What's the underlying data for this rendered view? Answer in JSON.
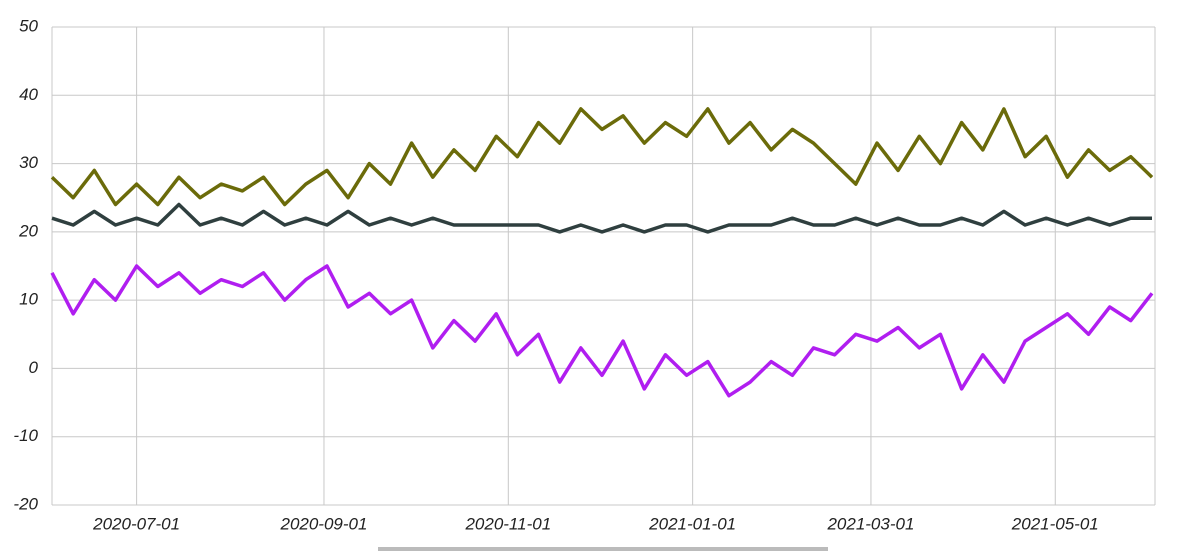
{
  "chart_data": {
    "type": "line",
    "x": [
      "2020-06-03",
      "2020-06-10",
      "2020-06-17",
      "2020-06-24",
      "2020-07-01",
      "2020-07-08",
      "2020-07-15",
      "2020-07-22",
      "2020-07-29",
      "2020-08-05",
      "2020-08-12",
      "2020-08-19",
      "2020-08-26",
      "2020-09-02",
      "2020-09-09",
      "2020-09-16",
      "2020-09-23",
      "2020-09-30",
      "2020-10-07",
      "2020-10-14",
      "2020-10-21",
      "2020-10-28",
      "2020-11-04",
      "2020-11-11",
      "2020-11-18",
      "2020-11-25",
      "2020-12-02",
      "2020-12-09",
      "2020-12-16",
      "2020-12-23",
      "2020-12-30",
      "2021-01-06",
      "2021-01-13",
      "2021-01-20",
      "2021-01-27",
      "2021-02-03",
      "2021-02-10",
      "2021-02-17",
      "2021-02-24",
      "2021-03-03",
      "2021-03-10",
      "2021-03-17",
      "2021-03-24",
      "2021-03-31",
      "2021-04-07",
      "2021-04-14",
      "2021-04-21",
      "2021-04-28",
      "2021-05-05",
      "2021-05-12",
      "2021-05-19",
      "2021-05-26",
      "2021-06-02"
    ],
    "series": [
      {
        "color": "#6b6b0a",
        "values": [
          28,
          25,
          29,
          24,
          27,
          24,
          28,
          25,
          27,
          26,
          28,
          24,
          27,
          29,
          25,
          30,
          27,
          33,
          28,
          32,
          29,
          34,
          31,
          36,
          33,
          38,
          35,
          37,
          33,
          36,
          34,
          38,
          33,
          36,
          32,
          35,
          33,
          30,
          27,
          33,
          29,
          34,
          30,
          36,
          32,
          38,
          31,
          34,
          28,
          32,
          29,
          31,
          28
        ]
      },
      {
        "color": "#2f3f3f",
        "values": [
          22,
          21,
          23,
          21,
          22,
          21,
          24,
          21,
          22,
          21,
          23,
          21,
          22,
          21,
          23,
          21,
          22,
          21,
          22,
          21,
          21,
          21,
          21,
          21,
          20,
          21,
          20,
          21,
          20,
          21,
          21,
          20,
          21,
          21,
          21,
          22,
          21,
          21,
          22,
          21,
          22,
          21,
          21,
          22,
          21,
          23,
          21,
          22,
          21,
          22,
          21,
          22,
          22
        ]
      },
      {
        "color": "#b01ef0",
        "values": [
          14,
          8,
          13,
          10,
          15,
          12,
          14,
          11,
          13,
          12,
          14,
          10,
          13,
          15,
          9,
          11,
          8,
          10,
          3,
          7,
          4,
          8,
          2,
          5,
          -2,
          3,
          -1,
          4,
          -3,
          2,
          -1,
          1,
          -4,
          -2,
          1,
          -1,
          3,
          2,
          5,
          4,
          6,
          3,
          5,
          -3,
          2,
          -2,
          4,
          6,
          8,
          5,
          9,
          7,
          11
        ]
      }
    ],
    "xlim": [
      "2020-06-03",
      "2021-06-03"
    ],
    "xticks": [
      "2020-07-01",
      "2020-09-01",
      "2020-11-01",
      "2021-01-01",
      "2021-03-01",
      "2021-05-01"
    ],
    "ylim": [
      -20,
      50
    ],
    "yticks": [
      -20,
      -10,
      0,
      10,
      20,
      30,
      40,
      50
    ],
    "grid": true
  }
}
